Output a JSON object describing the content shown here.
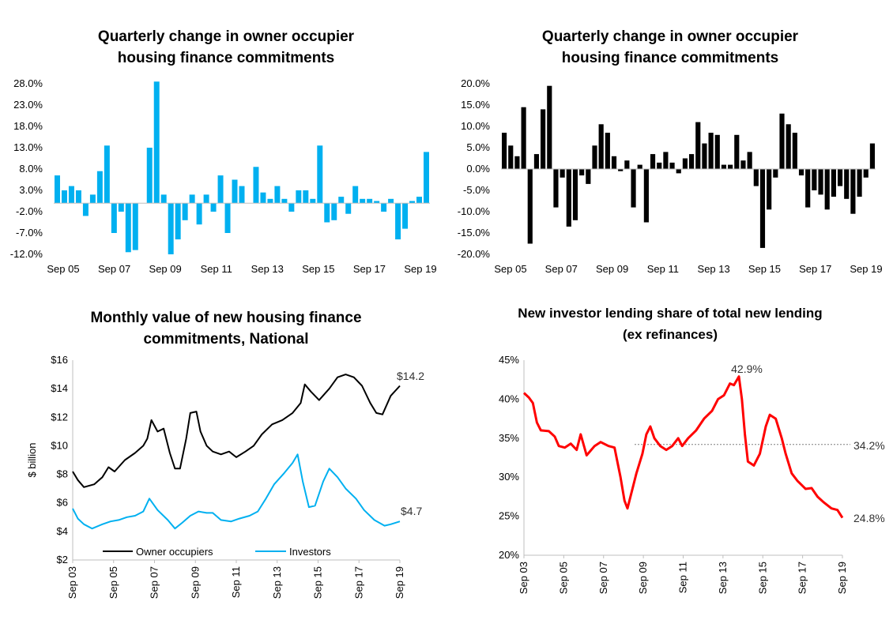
{
  "colors": {
    "blue": "#00b0f0",
    "black": "#000000",
    "red": "#ff0000",
    "dotted": "#7f7f7f"
  },
  "chart_data": [
    {
      "id": "owner_blue",
      "type": "bar",
      "title": [
        "Quarterly change in owner occupier",
        "housing finance commitments"
      ],
      "ylim": [
        -12,
        28
      ],
      "yticks": [
        -12,
        -7,
        -2,
        3,
        8,
        13,
        18,
        23,
        28
      ],
      "ytick_labels": [
        "-12.0%",
        "-7.0%",
        "-2.0%",
        "3.0%",
        "8.0%",
        "13.0%",
        "18.0%",
        "23.0%",
        "28.0%"
      ],
      "xtick_labels": [
        "Sep 05",
        "Sep 07",
        "Sep 09",
        "Sep 11",
        "Sep 13",
        "Sep 15",
        "Sep 17",
        "Sep 19"
      ],
      "values": [
        6.5,
        3.0,
        4.0,
        3.0,
        -3.0,
        2.0,
        7.5,
        13.5,
        -7.0,
        -2.0,
        -11.5,
        -11.0,
        0,
        13.0,
        28.5,
        2.0,
        -12.0,
        -8.5,
        -4.0,
        2.0,
        -5.0,
        2.0,
        -2.0,
        6.5,
        -7.0,
        5.5,
        4.0,
        0,
        8.5,
        2.5,
        1.0,
        4.0,
        1.0,
        -2.0,
        3.0,
        3.0,
        1.0,
        13.5,
        -4.5,
        -4.0,
        1.5,
        -2.5,
        4.0,
        1.0,
        1.0,
        0.5,
        -2.0,
        1.0,
        -8.5,
        -6.0,
        0.5,
        1.5,
        12.0
      ]
    },
    {
      "id": "owner_black",
      "type": "bar",
      "title": [
        "Quarterly change in owner occupier",
        "housing finance commitments"
      ],
      "ylim": [
        -20,
        20
      ],
      "yticks": [
        -20,
        -15,
        -10,
        -5,
        0,
        5,
        10,
        15,
        20
      ],
      "ytick_labels": [
        "-20.0%",
        "-15.0%",
        "-10.0%",
        "-5.0%",
        "0.0%",
        "5.0%",
        "10.0%",
        "15.0%",
        "20.0%"
      ],
      "xtick_labels": [
        "Sep 05",
        "Sep 07",
        "Sep 09",
        "Sep 11",
        "Sep 13",
        "Sep 15",
        "Sep 17",
        "Sep 19"
      ],
      "values": [
        8.5,
        5.5,
        3.0,
        14.5,
        -17.5,
        3.5,
        14.0,
        19.5,
        -9.0,
        -2.0,
        -13.5,
        -12.0,
        -1.5,
        -3.5,
        5.5,
        10.5,
        8.5,
        3.0,
        -0.5,
        2.0,
        -9.0,
        1.0,
        -12.5,
        3.5,
        1.5,
        4.0,
        1.5,
        -1.0,
        2.5,
        3.5,
        11.0,
        6.0,
        8.5,
        8.0,
        1.0,
        1.0,
        8.0,
        2.0,
        4.0,
        -4.0,
        -18.5,
        -9.5,
        -2.0,
        13.0,
        10.5,
        8.5,
        -1.5,
        -9.0,
        -5.0,
        -6.0,
        -9.5,
        -6.5,
        -4.0,
        -7.0,
        -10.5,
        -6.5,
        -2.0,
        6.0
      ]
    },
    {
      "id": "monthly_value",
      "type": "line",
      "title": [
        "Monthly value of new housing finance",
        "commitments, National"
      ],
      "ylabel": "$ billion",
      "ylim": [
        2,
        16
      ],
      "yticks": [
        2,
        4,
        6,
        8,
        10,
        12,
        14,
        16
      ],
      "ytick_labels": [
        "$2",
        "$4",
        "$6",
        "$8",
        "$10",
        "$12",
        "$14",
        "$16"
      ],
      "x": [
        2003.75,
        2019.75
      ],
      "xtick_labels": [
        "Sep 03",
        "Sep 05",
        "Sep 07",
        "Sep 09",
        "Sep 11",
        "Sep 13",
        "Sep 15",
        "Sep 17",
        "Sep 19"
      ],
      "legend": [
        "Owner occupiers",
        "Investors"
      ],
      "end_labels": [
        "$14.2",
        "$4.7"
      ],
      "series": [
        {
          "name": "Owner occupiers",
          "color": "#000000",
          "points": [
            [
              2003.75,
              8.2
            ],
            [
              2004.0,
              7.6
            ],
            [
              2004.3,
              7.1
            ],
            [
              2004.8,
              7.3
            ],
            [
              2005.2,
              7.8
            ],
            [
              2005.5,
              8.5
            ],
            [
              2005.8,
              8.2
            ],
            [
              2006.3,
              9.0
            ],
            [
              2006.8,
              9.5
            ],
            [
              2007.2,
              10.0
            ],
            [
              2007.4,
              10.5
            ],
            [
              2007.6,
              11.8
            ],
            [
              2007.9,
              11.0
            ],
            [
              2008.2,
              11.2
            ],
            [
              2008.5,
              9.5
            ],
            [
              2008.75,
              8.4
            ],
            [
              2009.0,
              8.4
            ],
            [
              2009.3,
              10.5
            ],
            [
              2009.5,
              12.3
            ],
            [
              2009.8,
              12.4
            ],
            [
              2010.0,
              11.0
            ],
            [
              2010.3,
              10.0
            ],
            [
              2010.6,
              9.6
            ],
            [
              2011.0,
              9.4
            ],
            [
              2011.4,
              9.6
            ],
            [
              2011.75,
              9.2
            ],
            [
              2012.2,
              9.6
            ],
            [
              2012.6,
              10.0
            ],
            [
              2013.0,
              10.8
            ],
            [
              2013.5,
              11.5
            ],
            [
              2014.0,
              11.8
            ],
            [
              2014.5,
              12.3
            ],
            [
              2014.9,
              13.0
            ],
            [
              2015.1,
              14.3
            ],
            [
              2015.4,
              13.8
            ],
            [
              2015.8,
              13.2
            ],
            [
              2016.3,
              14.0
            ],
            [
              2016.7,
              14.8
            ],
            [
              2017.1,
              15.0
            ],
            [
              2017.5,
              14.8
            ],
            [
              2017.9,
              14.2
            ],
            [
              2018.3,
              13.0
            ],
            [
              2018.6,
              12.3
            ],
            [
              2018.9,
              12.2
            ],
            [
              2019.3,
              13.5
            ],
            [
              2019.75,
              14.2
            ]
          ]
        },
        {
          "name": "Investors",
          "color": "#00b0f0",
          "points": [
            [
              2003.75,
              5.6
            ],
            [
              2004.0,
              4.9
            ],
            [
              2004.3,
              4.5
            ],
            [
              2004.7,
              4.2
            ],
            [
              2005.2,
              4.5
            ],
            [
              2005.6,
              4.7
            ],
            [
              2006.0,
              4.8
            ],
            [
              2006.4,
              5.0
            ],
            [
              2006.8,
              5.1
            ],
            [
              2007.2,
              5.4
            ],
            [
              2007.5,
              6.3
            ],
            [
              2007.9,
              5.5
            ],
            [
              2008.4,
              4.8
            ],
            [
              2008.75,
              4.2
            ],
            [
              2009.1,
              4.6
            ],
            [
              2009.5,
              5.1
            ],
            [
              2009.9,
              5.4
            ],
            [
              2010.3,
              5.3
            ],
            [
              2010.6,
              5.3
            ],
            [
              2011.0,
              4.8
            ],
            [
              2011.5,
              4.7
            ],
            [
              2011.9,
              4.9
            ],
            [
              2012.4,
              5.1
            ],
            [
              2012.8,
              5.4
            ],
            [
              2013.2,
              6.3
            ],
            [
              2013.6,
              7.3
            ],
            [
              2014.1,
              8.1
            ],
            [
              2014.5,
              8.8
            ],
            [
              2014.75,
              9.4
            ],
            [
              2015.0,
              7.5
            ],
            [
              2015.3,
              5.7
            ],
            [
              2015.6,
              5.8
            ],
            [
              2016.0,
              7.5
            ],
            [
              2016.3,
              8.4
            ],
            [
              2016.7,
              7.8
            ],
            [
              2017.1,
              7.0
            ],
            [
              2017.6,
              6.3
            ],
            [
              2018.0,
              5.5
            ],
            [
              2018.5,
              4.8
            ],
            [
              2019.0,
              4.4
            ],
            [
              2019.3,
              4.5
            ],
            [
              2019.75,
              4.7
            ]
          ]
        }
      ]
    },
    {
      "id": "investor_share",
      "type": "line",
      "title": [
        "New investor lending share of total new lending",
        "(ex refinances)"
      ],
      "ylim": [
        20,
        45
      ],
      "yticks": [
        20,
        25,
        30,
        35,
        40,
        45
      ],
      "ytick_labels": [
        "20%",
        "25%",
        "30%",
        "35%",
        "40%",
        "45%"
      ],
      "x": [
        2003.75,
        2019.75
      ],
      "xtick_labels": [
        "Sep 03",
        "Sep 05",
        "Sep 07",
        "Sep 09",
        "Sep 11",
        "Sep 13",
        "Sep 15",
        "Sep 17",
        "Sep 19"
      ],
      "average_line": 34.2,
      "annotations": {
        "peak": "42.9%",
        "average": "34.2%",
        "end": "24.8%"
      },
      "series": [
        {
          "name": "Investor share",
          "color": "#ff0000",
          "points": [
            [
              2003.75,
              40.8
            ],
            [
              2004.0,
              40.2
            ],
            [
              2004.2,
              39.5
            ],
            [
              2004.4,
              37.0
            ],
            [
              2004.6,
              36.0
            ],
            [
              2005.0,
              35.9
            ],
            [
              2005.3,
              35.2
            ],
            [
              2005.5,
              34.0
            ],
            [
              2005.8,
              33.8
            ],
            [
              2006.1,
              34.3
            ],
            [
              2006.4,
              33.5
            ],
            [
              2006.6,
              35.5
            ],
            [
              2006.9,
              32.8
            ],
            [
              2007.3,
              34.0
            ],
            [
              2007.6,
              34.5
            ],
            [
              2008.0,
              34.0
            ],
            [
              2008.3,
              33.8
            ],
            [
              2008.6,
              30.0
            ],
            [
              2008.8,
              27.0
            ],
            [
              2008.95,
              26.0
            ],
            [
              2009.2,
              28.5
            ],
            [
              2009.4,
              30.5
            ],
            [
              2009.7,
              33.0
            ],
            [
              2009.9,
              35.5
            ],
            [
              2010.1,
              36.5
            ],
            [
              2010.3,
              35.0
            ],
            [
              2010.6,
              34.0
            ],
            [
              2010.9,
              33.5
            ],
            [
              2011.2,
              34.0
            ],
            [
              2011.5,
              35.0
            ],
            [
              2011.7,
              34.0
            ],
            [
              2012.0,
              35.0
            ],
            [
              2012.4,
              36.0
            ],
            [
              2012.8,
              37.5
            ],
            [
              2013.2,
              38.5
            ],
            [
              2013.5,
              40.0
            ],
            [
              2013.8,
              40.5
            ],
            [
              2014.1,
              42.0
            ],
            [
              2014.3,
              41.8
            ],
            [
              2014.55,
              42.9
            ],
            [
              2014.7,
              40.0
            ],
            [
              2014.85,
              35.5
            ],
            [
              2015.0,
              32.0
            ],
            [
              2015.3,
              31.5
            ],
            [
              2015.6,
              33.0
            ],
            [
              2015.9,
              36.5
            ],
            [
              2016.1,
              38.0
            ],
            [
              2016.4,
              37.5
            ],
            [
              2016.7,
              35.0
            ],
            [
              2016.9,
              33.0
            ],
            [
              2017.2,
              30.5
            ],
            [
              2017.5,
              29.5
            ],
            [
              2017.9,
              28.5
            ],
            [
              2018.2,
              28.6
            ],
            [
              2018.5,
              27.5
            ],
            [
              2018.8,
              26.8
            ],
            [
              2019.2,
              26.0
            ],
            [
              2019.5,
              25.8
            ],
            [
              2019.75,
              24.8
            ]
          ]
        }
      ]
    }
  ]
}
